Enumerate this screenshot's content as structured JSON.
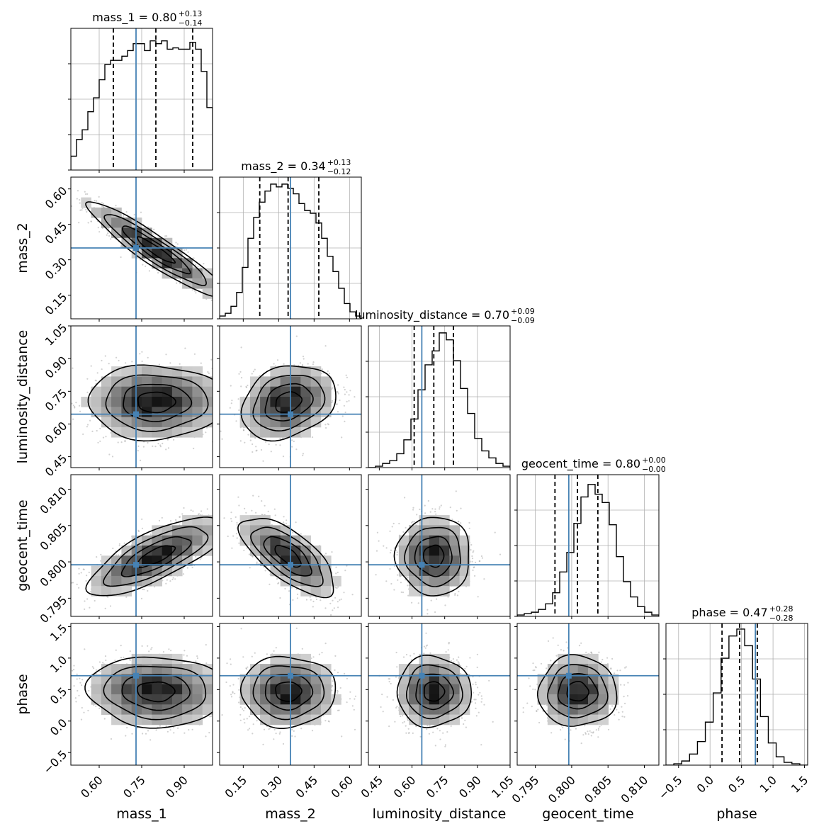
{
  "chart_data": {
    "type": "corner",
    "parameters": [
      {
        "name": "mass_1",
        "title": "mass_1 = 0.80",
        "err_plus": "+0.13",
        "err_minus": "−0.14",
        "range": [
          0.5,
          1.0
        ],
        "ticks": [
          0.6,
          0.75,
          0.9
        ],
        "tick_labels": [
          "0.60",
          "0.75",
          "0.90"
        ],
        "truth": 0.73,
        "median": 0.8,
        "quantiles": [
          0.65,
          0.8,
          0.93
        ],
        "hist": [
          0.1,
          0.22,
          0.29,
          0.42,
          0.52,
          0.65,
          0.76,
          0.79,
          0.79,
          0.82,
          0.86,
          0.91,
          0.91,
          0.86,
          0.93,
          0.91,
          0.93,
          0.87,
          0.88,
          0.87,
          0.87,
          0.92,
          0.87,
          0.71,
          0.45
        ]
      },
      {
        "name": "mass_2",
        "title": "mass_2 = 0.34",
        "err_plus": "+0.13",
        "err_minus": "−0.12",
        "range": [
          0.05,
          0.65
        ],
        "ticks": [
          0.15,
          0.3,
          0.45,
          0.6
        ],
        "tick_labels": [
          "0.15",
          "0.30",
          "0.45",
          "0.60"
        ],
        "truth": 0.35,
        "median": 0.34,
        "quantiles": [
          0.22,
          0.34,
          0.47
        ],
        "hist": [
          0.02,
          0.04,
          0.09,
          0.19,
          0.37,
          0.58,
          0.73,
          0.84,
          0.92,
          0.97,
          0.95,
          0.97,
          0.94,
          0.9,
          0.83,
          0.78,
          0.76,
          0.69,
          0.58,
          0.45,
          0.34,
          0.22,
          0.11,
          0.05,
          0.02
        ]
      },
      {
        "name": "luminosity_distance",
        "title": "luminosity_distance = 0.70",
        "err_plus": "+0.09",
        "err_minus": "−0.09",
        "range": [
          0.4,
          1.05
        ],
        "ticks": [
          0.45,
          0.6,
          0.75,
          0.9,
          1.05
        ],
        "tick_labels": [
          "0.45",
          "0.60",
          "0.75",
          "0.90",
          "1.05"
        ],
        "truth": 0.645,
        "median": 0.7,
        "quantiles": [
          0.61,
          0.7,
          0.79
        ],
        "hist": [
          0.0,
          0.01,
          0.03,
          0.05,
          0.1,
          0.2,
          0.35,
          0.56,
          0.74,
          0.84,
          0.97,
          0.92,
          0.77,
          0.57,
          0.39,
          0.21,
          0.12,
          0.07,
          0.03,
          0.01
        ]
      },
      {
        "name": "geocent_time",
        "title": "geocent_time = 0.80",
        "err_plus": "+0.00",
        "err_minus": "−0.00",
        "range": [
          0.7925,
          0.812
        ],
        "ticks": [
          0.795,
          0.8,
          0.805,
          0.81
        ],
        "tick_labels": [
          "0.795",
          "0.800",
          "0.805",
          "0.810"
        ],
        "truth": 0.7996,
        "median": 0.8008,
        "quantiles": [
          0.7977,
          0.8008,
          0.8036
        ],
        "hist": [
          0.01,
          0.02,
          0.03,
          0.05,
          0.09,
          0.17,
          0.32,
          0.46,
          0.67,
          0.86,
          0.95,
          0.88,
          0.82,
          0.66,
          0.43,
          0.25,
          0.14,
          0.07,
          0.03,
          0.01
        ]
      },
      {
        "name": "phase",
        "title": "phase = 0.47",
        "err_plus": "+0.28",
        "err_minus": "−0.28",
        "range": [
          -0.7,
          1.55
        ],
        "ticks": [
          -0.5,
          0.0,
          0.5,
          1.0,
          1.5
        ],
        "tick_labels": [
          "−0.5",
          "0.0",
          "0.5",
          "1.0",
          "1.5"
        ],
        "truth": 0.72,
        "median": 0.47,
        "quantiles": [
          0.19,
          0.47,
          0.75
        ],
        "hist": [
          0.0,
          0.01,
          0.03,
          0.08,
          0.17,
          0.31,
          0.52,
          0.77,
          0.93,
          0.98,
          0.86,
          0.62,
          0.35,
          0.16,
          0.06,
          0.02,
          0.01,
          0.0
        ]
      }
    ],
    "pairs": [
      {
        "row": 1,
        "col": 0,
        "center": [
          0.8,
          0.34
        ],
        "sigma": [
          0.12,
          0.1
        ],
        "rho": -0.93
      },
      {
        "row": 2,
        "col": 0,
        "center": [
          0.8,
          0.7
        ],
        "sigma": [
          0.12,
          0.085
        ],
        "rho": 0.0
      },
      {
        "row": 2,
        "col": 1,
        "center": [
          0.34,
          0.7
        ],
        "sigma": [
          0.1,
          0.085
        ],
        "rho": 0.25
      },
      {
        "row": 3,
        "col": 0,
        "center": [
          0.8,
          0.8008
        ],
        "sigma": [
          0.12,
          0.0027
        ],
        "rho": 0.75
      },
      {
        "row": 3,
        "col": 1,
        "center": [
          0.34,
          0.8008
        ],
        "sigma": [
          0.1,
          0.0027
        ],
        "rho": -0.7
      },
      {
        "row": 3,
        "col": 2,
        "center": [
          0.7,
          0.8008
        ],
        "sigma": [
          0.085,
          0.0027
        ],
        "rho": 0.0
      },
      {
        "row": 4,
        "col": 0,
        "center": [
          0.8,
          0.47
        ],
        "sigma": [
          0.12,
          0.28
        ],
        "rho": -0.05
      },
      {
        "row": 4,
        "col": 1,
        "center": [
          0.34,
          0.47
        ],
        "sigma": [
          0.1,
          0.28
        ],
        "rho": 0.0
      },
      {
        "row": 4,
        "col": 2,
        "center": [
          0.7,
          0.47
        ],
        "sigma": [
          0.085,
          0.28
        ],
        "rho": 0.0
      },
      {
        "row": 4,
        "col": 3,
        "center": [
          0.8008,
          0.47
        ],
        "sigma": [
          0.0027,
          0.28
        ],
        "rho": 0.0
      }
    ],
    "colors": {
      "truth": "#4682b4",
      "hist": "#000000",
      "quantile": "#000000",
      "density": "#000000",
      "grid": "#b0b0b0"
    },
    "grid": true
  }
}
